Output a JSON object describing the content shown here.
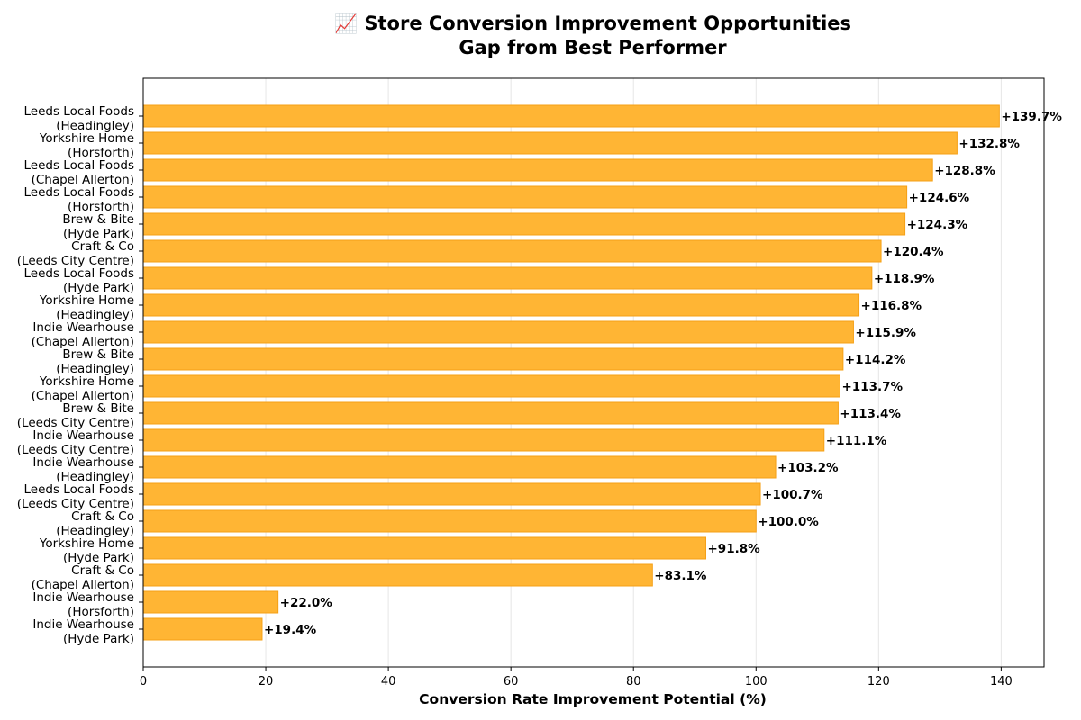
{
  "chart_data": {
    "type": "bar",
    "orientation": "horizontal",
    "title": "📈 Store Conversion Improvement Opportunities",
    "subtitle": "Gap from Best Performer",
    "xlabel": "Conversion Rate Improvement Potential (%)",
    "ylabel": "",
    "xlim": [
      0,
      147
    ],
    "xticks": [
      0,
      20,
      40,
      60,
      80,
      100,
      120,
      140
    ],
    "grid": "vertical",
    "bar_color": "#FFB534",
    "bar_edge_color": "#F5A016",
    "categories": [
      {
        "line1": "Leeds Local Foods",
        "line2": "(Headingley)"
      },
      {
        "line1": "Yorkshire Home",
        "line2": "(Horsforth)"
      },
      {
        "line1": "Leeds Local Foods",
        "line2": "(Chapel Allerton)"
      },
      {
        "line1": "Leeds Local Foods",
        "line2": "(Horsforth)"
      },
      {
        "line1": "Brew & Bite",
        "line2": "(Hyde Park)"
      },
      {
        "line1": "Craft & Co",
        "line2": "(Leeds City Centre)"
      },
      {
        "line1": "Leeds Local Foods",
        "line2": "(Hyde Park)"
      },
      {
        "line1": "Yorkshire Home",
        "line2": "(Headingley)"
      },
      {
        "line1": "Indie Wearhouse",
        "line2": "(Chapel Allerton)"
      },
      {
        "line1": "Brew & Bite",
        "line2": "(Headingley)"
      },
      {
        "line1": "Yorkshire Home",
        "line2": "(Chapel Allerton)"
      },
      {
        "line1": "Brew & Bite",
        "line2": "(Leeds City Centre)"
      },
      {
        "line1": "Indie Wearhouse",
        "line2": "(Leeds City Centre)"
      },
      {
        "line1": "Indie Wearhouse",
        "line2": "(Headingley)"
      },
      {
        "line1": "Leeds Local Foods",
        "line2": "(Leeds City Centre)"
      },
      {
        "line1": "Craft & Co",
        "line2": "(Headingley)"
      },
      {
        "line1": "Yorkshire Home",
        "line2": "(Hyde Park)"
      },
      {
        "line1": "Craft & Co",
        "line2": "(Chapel Allerton)"
      },
      {
        "line1": "Indie Wearhouse",
        "line2": "(Horsforth)"
      },
      {
        "line1": "Indie Wearhouse",
        "line2": "(Hyde Park)"
      }
    ],
    "values": [
      139.7,
      132.8,
      128.8,
      124.6,
      124.3,
      120.4,
      118.9,
      116.8,
      115.9,
      114.2,
      113.7,
      113.4,
      111.1,
      103.2,
      100.7,
      100.0,
      91.8,
      83.1,
      22.0,
      19.4
    ],
    "value_labels": [
      "+139.7%",
      "+132.8%",
      "+128.8%",
      "+124.6%",
      "+124.3%",
      "+120.4%",
      "+118.9%",
      "+116.8%",
      "+115.9%",
      "+114.2%",
      "+113.7%",
      "+113.4%",
      "+111.1%",
      "+103.2%",
      "+100.7%",
      "+100.0%",
      "+91.8%",
      "+83.1%",
      "+22.0%",
      "+19.4%"
    ]
  }
}
